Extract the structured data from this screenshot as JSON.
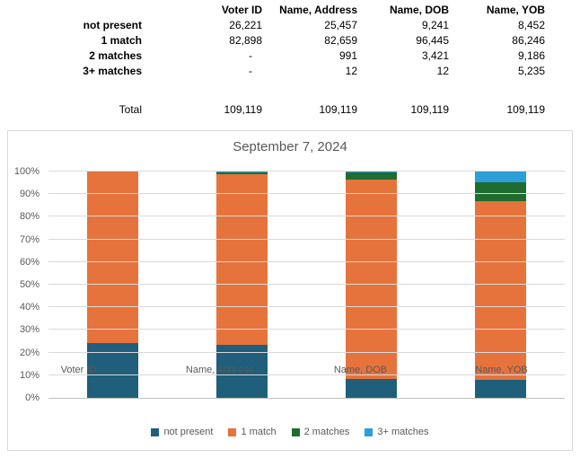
{
  "table": {
    "columns": [
      "Voter ID",
      "Name, Address",
      "Name, DOB",
      "Name, YOB"
    ],
    "rows": [
      {
        "label": "not present",
        "values": [
          "26,221",
          "25,457",
          "9,241",
          "8,452"
        ]
      },
      {
        "label": "1 match",
        "values": [
          "82,898",
          "82,659",
          "96,445",
          "86,246"
        ]
      },
      {
        "label": "2 matches",
        "values": [
          "-",
          "991",
          "3,421",
          "9,186"
        ]
      },
      {
        "label": "3+ matches",
        "values": [
          "-",
          "12",
          "12",
          "5,235"
        ]
      }
    ],
    "total_row": {
      "label": "Total",
      "values": [
        "109,119",
        "109,119",
        "109,119",
        "109,119"
      ]
    }
  },
  "chart_data": {
    "type": "bar",
    "subtype": "100%-stacked-column",
    "title": "September 7, 2024",
    "categories": [
      "Voter ID",
      "Name, Address",
      "Name, DOB",
      "Name, YOB"
    ],
    "series": [
      {
        "name": "not present",
        "color": "#1f5f7b",
        "values": [
          26221,
          25457,
          9241,
          8452
        ],
        "percent": [
          24.03,
          23.33,
          8.47,
          7.75
        ]
      },
      {
        "name": "1 match",
        "color": "#e6733b",
        "values": [
          82898,
          82659,
          96445,
          86246
        ],
        "percent": [
          75.97,
          75.76,
          88.39,
          79.04
        ]
      },
      {
        "name": "2 matches",
        "color": "#1e6c2f",
        "values": [
          0,
          991,
          3421,
          9186
        ],
        "percent": [
          0,
          0.91,
          3.14,
          8.42
        ]
      },
      {
        "name": "3+ matches",
        "color": "#2b9fd7",
        "values": [
          0,
          12,
          12,
          5235
        ],
        "percent": [
          0,
          0.01,
          0.01,
          4.8
        ]
      }
    ],
    "column_total": 109119,
    "ylabel": "",
    "xlabel": "",
    "ylim": [
      0,
      100
    ],
    "y_ticks": [
      "0%",
      "10%",
      "20%",
      "30%",
      "40%",
      "50%",
      "60%",
      "70%",
      "80%",
      "90%",
      "100%"
    ],
    "grid": true,
    "legend_position": "bottom"
  },
  "colors": {
    "gridline": "#d9d9d9",
    "axis_line": "#bfbfbf",
    "chart_border": "#d9d9d9",
    "text_gray": "#595959"
  }
}
